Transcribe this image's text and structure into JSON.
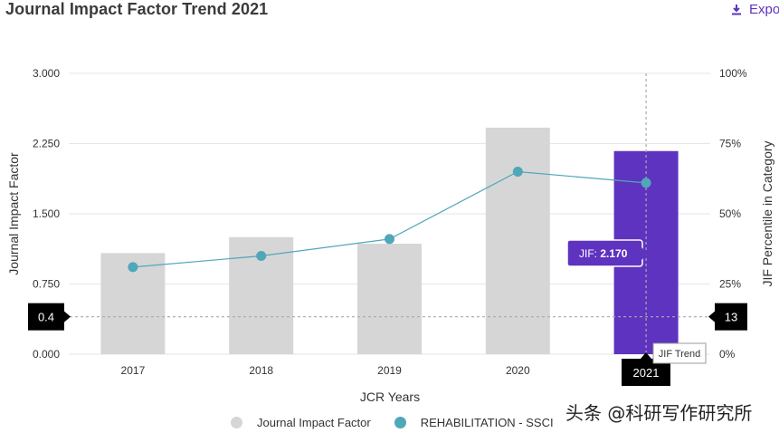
{
  "header": {
    "title": "Journal Impact Factor Trend 2021",
    "export_label": "Expo",
    "export_icon": "download-icon"
  },
  "watermark": "头条 @科研写作研究所",
  "chart_data": {
    "type": "bar",
    "categories": [
      "2017",
      "2018",
      "2019",
      "2020",
      "2021"
    ],
    "series": [
      {
        "name": "Journal Impact Factor",
        "axis": "left",
        "type": "bar",
        "values": [
          1.08,
          1.25,
          1.18,
          2.42,
          2.17
        ],
        "colors": [
          "#d6d6d6",
          "#d6d6d6",
          "#d6d6d6",
          "#d6d6d6",
          "#5e33bf"
        ]
      },
      {
        "name": "REHABILITATION - SSCI",
        "axis": "right",
        "type": "line",
        "values": [
          31,
          35,
          41,
          65,
          61
        ],
        "color": "#4fa7b9"
      }
    ],
    "xlabel": "JCR Years",
    "ylabel": "Journal Impact Factor",
    "ylabel_right": "JIF Percentile in Category",
    "ylim": [
      0,
      3
    ],
    "yticks": [
      "0.000",
      "0.750",
      "1.500",
      "2.250",
      "3.000"
    ],
    "ylim_right": [
      0,
      100
    ],
    "yticks_right": [
      "0%",
      "25%",
      "50%",
      "75%",
      "100%"
    ],
    "crosshair": {
      "category": "2021",
      "left_value": 0.4,
      "left_label": "0.4",
      "right_label": "13"
    },
    "tooltip": {
      "prefix": "JIF: ",
      "value": "2.170"
    },
    "trend_tag": "JIF Trend",
    "highlight_category": "2021",
    "legend": [
      "Journal Impact Factor",
      "REHABILITATION - SSCI"
    ],
    "legend_position": "bottom",
    "grid": true
  }
}
